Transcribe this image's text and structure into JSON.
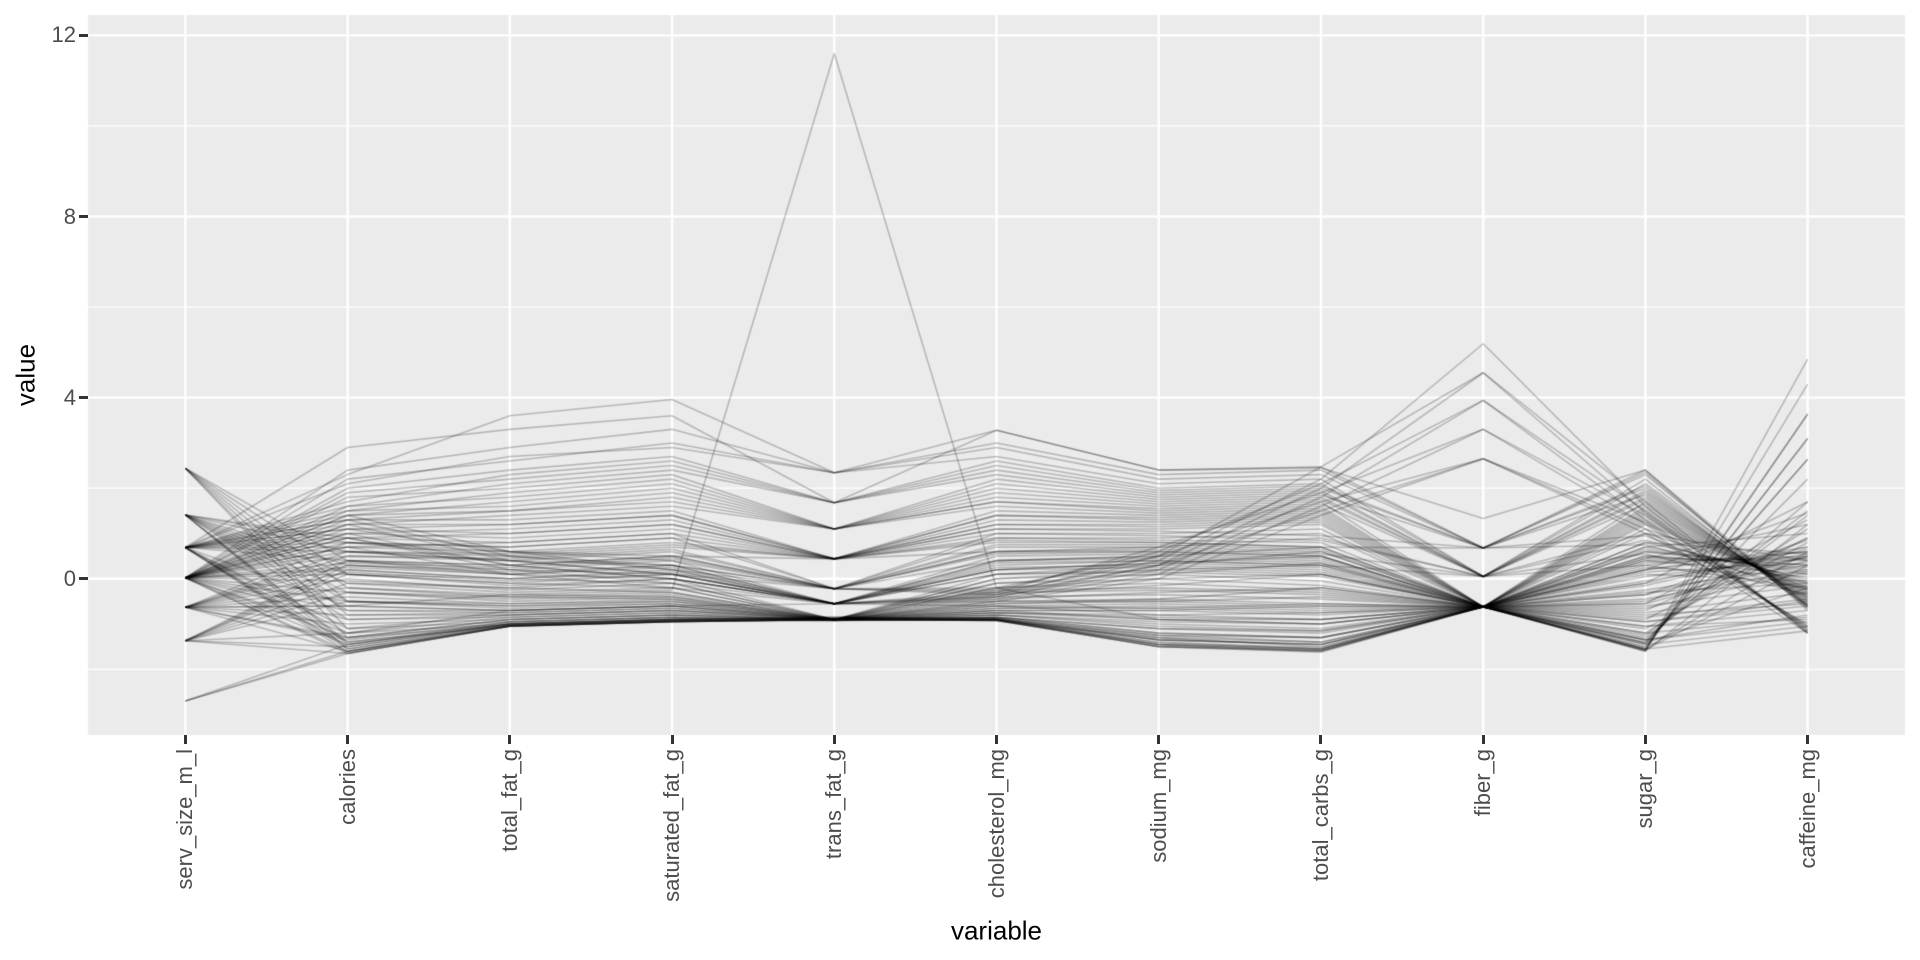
{
  "chart_data": {
    "type": "line",
    "variant": "parallel_coordinates",
    "title": "",
    "xlabel": "variable",
    "ylabel": "value",
    "categories": [
      "serv_size_m_l",
      "calories",
      "total_fat_g",
      "saturated_fat_g",
      "trans_fat_g",
      "cholesterol_mg",
      "sodium_mg",
      "total_carbs_g",
      "fiber_g",
      "sugar_g",
      "caffeine_mg"
    ],
    "y_ticks": [
      0,
      4,
      8,
      12
    ],
    "y_minor_ticks": [
      -2,
      2,
      6,
      10
    ],
    "ylim": [
      -3.45,
      12.45
    ],
    "grid": true,
    "legend": false,
    "style": {
      "panel_bg": "#EBEBEB",
      "grid_color": "#FFFFFF",
      "major_grid_width": 2.4,
      "minor_grid_width": 1.2,
      "line_color": "#000000",
      "line_alpha": 0.22,
      "line_width": 1.6,
      "tick_color": "#333333",
      "tick_label_color": "#4D4D4D",
      "axis_title_color": "#000000"
    },
    "lines": [
      [
        0.02,
        2.4,
        2.9,
        3.3,
        2.34,
        3.28,
        2.4,
        2.47,
        0.68,
        2.4,
        -0.6
      ],
      [
        0.02,
        2.2,
        2.6,
        3.0,
        2.34,
        2.9,
        2.2,
        2.3,
        0.68,
        2.3,
        -0.6
      ],
      [
        0.69,
        2.3,
        3.6,
        3.96,
        2.34,
        3.0,
        2.3,
        2.4,
        0.68,
        2.35,
        -0.65
      ],
      [
        0.69,
        2.9,
        3.3,
        3.6,
        1.68,
        3.28,
        2.4,
        2.45,
        1.33,
        2.4,
        -0.7
      ],
      [
        0.02,
        2.0,
        2.4,
        2.7,
        1.68,
        2.6,
        2.0,
        2.1,
        0.05,
        2.1,
        -0.55
      ],
      [
        0.02,
        1.9,
        2.2,
        2.5,
        1.68,
        2.4,
        1.9,
        2.0,
        0.68,
        2.0,
        -0.6
      ],
      [
        0.69,
        2.1,
        2.7,
        2.9,
        2.34,
        2.7,
        2.1,
        2.2,
        0.05,
        2.2,
        -0.65
      ],
      [
        0.02,
        1.8,
        2.0,
        2.3,
        1.1,
        2.2,
        1.8,
        1.9,
        0.05,
        1.9,
        -0.5
      ],
      [
        0.69,
        1.7,
        2.3,
        2.6,
        1.68,
        2.5,
        1.95,
        2.05,
        0.68,
        2.05,
        -0.6
      ],
      [
        0.02,
        1.6,
        1.8,
        2.1,
        1.1,
        2.0,
        1.7,
        1.8,
        0.05,
        1.8,
        -0.45
      ],
      [
        0.02,
        1.5,
        1.6,
        1.9,
        1.1,
        1.8,
        1.6,
        1.7,
        -0.62,
        1.7,
        -0.4
      ],
      [
        0.69,
        1.6,
        2.1,
        2.4,
        1.68,
        2.3,
        1.85,
        1.95,
        0.05,
        1.95,
        -0.55
      ],
      [
        0.02,
        1.4,
        1.5,
        1.7,
        1.1,
        1.7,
        1.5,
        1.6,
        -0.62,
        1.6,
        -0.35
      ],
      [
        0.69,
        1.5,
        1.9,
        2.2,
        1.1,
        2.1,
        1.75,
        1.85,
        0.68,
        1.85,
        -0.5
      ],
      [
        0.02,
        1.3,
        1.3,
        1.5,
        0.44,
        1.5,
        1.4,
        1.5,
        -0.62,
        1.5,
        -0.3
      ],
      [
        0.69,
        1.4,
        1.7,
        2.0,
        1.1,
        1.9,
        1.65,
        1.75,
        0.05,
        1.75,
        -0.45
      ],
      [
        0.02,
        1.2,
        1.2,
        1.4,
        0.44,
        1.4,
        1.3,
        1.4,
        -0.62,
        1.4,
        -0.25
      ],
      [
        0.69,
        1.3,
        1.5,
        1.8,
        1.1,
        1.7,
        1.55,
        1.65,
        0.05,
        1.65,
        -0.4
      ],
      [
        0.02,
        1.1,
        1.0,
        1.2,
        0.44,
        1.2,
        1.2,
        1.3,
        -0.62,
        1.3,
        -0.2
      ],
      [
        0.69,
        1.2,
        1.4,
        1.6,
        1.1,
        1.6,
        1.45,
        1.55,
        -0.62,
        1.55,
        -0.35
      ],
      [
        0.02,
        1.0,
        0.9,
        1.1,
        0.44,
        1.1,
        1.1,
        1.2,
        -0.62,
        1.2,
        -0.15
      ],
      [
        0.69,
        1.1,
        1.2,
        1.4,
        0.44,
        1.4,
        1.35,
        1.45,
        -0.62,
        1.45,
        -0.3
      ],
      [
        0.02,
        0.9,
        0.8,
        1.0,
        -0.22,
        1.0,
        1.0,
        1.1,
        -0.62,
        1.1,
        -0.1
      ],
      [
        0.69,
        1.0,
        1.1,
        1.3,
        0.44,
        1.3,
        1.25,
        1.35,
        -0.62,
        1.35,
        -0.25
      ],
      [
        0.02,
        0.8,
        0.7,
        0.9,
        -0.22,
        0.9,
        0.9,
        1.0,
        -0.62,
        1.0,
        -0.05
      ],
      [
        0.69,
        0.9,
        1.0,
        1.2,
        0.44,
        1.2,
        1.15,
        1.25,
        -0.62,
        1.25,
        -0.2
      ],
      [
        -0.63,
        0.6,
        0.5,
        0.7,
        0.44,
        0.8,
        0.8,
        0.7,
        -0.62,
        0.7,
        0.1
      ],
      [
        -0.63,
        0.5,
        0.4,
        0.6,
        -0.22,
        0.7,
        0.7,
        0.6,
        -0.62,
        0.6,
        0.2
      ],
      [
        0.02,
        0.7,
        0.6,
        0.8,
        0.44,
        0.9,
        0.85,
        0.8,
        -0.62,
        0.8,
        0.0
      ],
      [
        -1.37,
        0.4,
        0.3,
        0.5,
        -0.22,
        0.6,
        0.6,
        0.5,
        -0.62,
        0.5,
        0.3
      ],
      [
        -0.63,
        0.4,
        0.2,
        0.4,
        -0.55,
        0.5,
        0.55,
        0.45,
        -0.62,
        0.45,
        0.4
      ],
      [
        0.02,
        0.5,
        0.45,
        0.65,
        -0.22,
        0.75,
        0.75,
        0.65,
        -0.62,
        0.65,
        0.15
      ],
      [
        -1.37,
        0.3,
        0.15,
        0.3,
        -0.55,
        0.4,
        0.45,
        0.35,
        -0.62,
        0.35,
        0.5
      ],
      [
        -0.63,
        0.3,
        0.1,
        0.25,
        -0.55,
        0.35,
        0.4,
        0.3,
        -0.62,
        0.3,
        0.6
      ],
      [
        0.02,
        0.35,
        0.25,
        0.45,
        -0.22,
        0.55,
        0.6,
        0.5,
        -0.62,
        0.5,
        0.25
      ],
      [
        -1.37,
        0.2,
        0.0,
        0.15,
        -0.55,
        0.25,
        0.3,
        0.2,
        -0.62,
        0.2,
        0.7
      ],
      [
        -0.63,
        0.15,
        -0.05,
        0.1,
        -0.55,
        0.2,
        0.25,
        0.15,
        -0.62,
        0.15,
        0.35
      ],
      [
        0.02,
        0.25,
        0.1,
        0.3,
        -0.55,
        0.4,
        0.5,
        0.4,
        -0.62,
        0.4,
        0.1
      ],
      [
        -1.37,
        0.1,
        -0.15,
        0.0,
        -0.9,
        0.1,
        0.15,
        0.05,
        -0.62,
        0.05,
        0.45
      ],
      [
        -0.63,
        0.0,
        -0.25,
        -0.1,
        -0.9,
        0.0,
        0.1,
        -0.05,
        -0.62,
        -0.05,
        0.55
      ],
      [
        0.02,
        0.1,
        -0.1,
        0.1,
        -0.55,
        0.2,
        0.35,
        0.25,
        -0.62,
        0.25,
        0.05
      ],
      [
        -1.37,
        -0.1,
        -0.3,
        -0.2,
        -0.9,
        -0.1,
        0.0,
        -0.15,
        -0.62,
        -0.15,
        0.65
      ],
      [
        -0.63,
        -0.2,
        -0.4,
        -0.3,
        -0.9,
        -0.2,
        -0.1,
        -0.25,
        -0.62,
        -0.25,
        0.3
      ],
      [
        0.02,
        -0.05,
        -0.2,
        0.0,
        -0.55,
        0.1,
        0.2,
        0.1,
        -0.62,
        0.1,
        -0.05
      ],
      [
        -1.37,
        -0.3,
        -0.5,
        -0.4,
        -0.9,
        -0.3,
        -0.25,
        -0.35,
        -0.62,
        -0.35,
        0.5
      ],
      [
        -0.63,
        -0.4,
        -0.55,
        -0.45,
        -0.9,
        -0.4,
        -0.35,
        -0.45,
        -0.62,
        -0.45,
        0.2
      ],
      [
        0.02,
        -0.3,
        -0.45,
        -0.35,
        -0.9,
        -0.25,
        -0.2,
        -0.3,
        -0.62,
        -0.3,
        -0.1
      ],
      [
        -1.37,
        -0.5,
        -0.6,
        -0.5,
        -0.9,
        -0.5,
        -0.45,
        -0.55,
        -0.62,
        -0.55,
        0.4
      ],
      [
        -0.63,
        -0.6,
        -0.7,
        -0.6,
        -0.9,
        -0.6,
        -0.55,
        -0.65,
        -0.62,
        -0.65,
        0.15
      ],
      [
        0.02,
        -0.5,
        -0.65,
        -0.55,
        -0.9,
        -0.55,
        -0.5,
        -0.6,
        -0.62,
        -0.6,
        -0.15
      ],
      [
        0.69,
        -1.62,
        -1.05,
        -0.95,
        -0.9,
        -0.92,
        -1.5,
        -1.62,
        -0.62,
        -1.6,
        4.85
      ],
      [
        0.02,
        -1.65,
        -1.05,
        -0.95,
        -0.9,
        -0.92,
        -1.45,
        -1.6,
        -0.62,
        -1.58,
        4.3
      ],
      [
        1.41,
        -1.55,
        -1.03,
        -0.93,
        -0.88,
        -0.9,
        -1.4,
        -1.55,
        -0.62,
        -1.55,
        3.64
      ],
      [
        0.02,
        -1.6,
        -1.04,
        -0.94,
        -0.9,
        -0.91,
        -1.48,
        -1.58,
        -0.62,
        -1.58,
        3.64
      ],
      [
        -0.63,
        -1.6,
        -1.05,
        -0.95,
        -0.9,
        -0.92,
        -1.3,
        -1.5,
        -0.62,
        -1.5,
        3.1
      ],
      [
        0.69,
        -1.55,
        -1.02,
        -0.92,
        -0.88,
        -0.9,
        -1.42,
        -1.52,
        -0.62,
        -1.52,
        3.1
      ],
      [
        0.69,
        -1.5,
        -1.0,
        -0.9,
        -0.85,
        -0.9,
        -1.35,
        -1.45,
        -0.62,
        -1.45,
        2.64
      ],
      [
        1.41,
        -1.45,
        -1.0,
        -0.9,
        -0.85,
        -0.88,
        -1.35,
        -1.45,
        -0.62,
        -1.42,
        2.64
      ],
      [
        0.02,
        -1.45,
        -1.0,
        -0.9,
        -0.85,
        -0.88,
        -1.25,
        -1.4,
        -0.62,
        -1.4,
        2.2
      ],
      [
        1.41,
        -1.4,
        -0.98,
        -0.88,
        -0.9,
        -0.85,
        -1.2,
        -1.3,
        -0.62,
        -1.35,
        1.7
      ],
      [
        -0.63,
        -1.35,
        -0.95,
        -0.85,
        -0.9,
        -0.85,
        -1.1,
        -1.2,
        -0.62,
        -1.3,
        1.4
      ],
      [
        0.02,
        -1.3,
        -0.9,
        -0.8,
        -0.9,
        -0.8,
        -1.0,
        -1.1,
        -0.62,
        -1.2,
        1.1
      ],
      [
        0.69,
        -1.2,
        -0.85,
        -0.75,
        -0.9,
        -0.75,
        -0.9,
        -1.0,
        -0.62,
        -1.1,
        0.8
      ],
      [
        2.44,
        -1.3,
        -0.9,
        -0.8,
        -0.9,
        -0.8,
        -1.05,
        -1.15,
        -0.62,
        -1.25,
        1.5
      ],
      [
        2.44,
        -1.1,
        -0.8,
        -0.7,
        -0.9,
        -0.7,
        -0.9,
        -0.9,
        -0.62,
        -0.9,
        0.9
      ],
      [
        -2.7,
        -1.65,
        -1.05,
        -0.95,
        -0.9,
        -0.92,
        -1.5,
        -1.6,
        -0.62,
        -1.6,
        1.2
      ],
      [
        -2.7,
        -1.6,
        -1.03,
        -0.93,
        -0.88,
        -0.9,
        -1.45,
        -1.55,
        -0.62,
        -1.55,
        0.6
      ],
      [
        -1.37,
        -1.65,
        -1.05,
        -0.95,
        -0.9,
        -0.92,
        -1.5,
        -1.58,
        -0.62,
        -1.57,
        0.3
      ],
      [
        -1.37,
        -1.5,
        -1.0,
        -0.9,
        -0.9,
        -0.88,
        -1.3,
        -1.4,
        -0.62,
        -1.42,
        -0.2
      ],
      [
        -1.37,
        -1.2,
        -0.7,
        -0.6,
        -0.55,
        -0.6,
        -0.8,
        -0.9,
        -0.62,
        -0.95,
        -0.5
      ],
      [
        -2.7,
        -1.45,
        -0.95,
        -0.85,
        -0.9,
        -0.85,
        -1.2,
        -1.3,
        -0.62,
        -1.35,
        -0.8
      ],
      [
        -0.63,
        -0.6,
        -0.35,
        -0.25,
        11.6,
        -0.2,
        -0.9,
        -1.0,
        -0.62,
        -1.05,
        -0.9
      ],
      [
        0.02,
        1.4,
        0.6,
        0.2,
        -0.55,
        -0.3,
        0.4,
        2.2,
        5.19,
        1.6,
        -1.2
      ],
      [
        0.02,
        1.2,
        0.4,
        0.1,
        -0.55,
        -0.35,
        0.3,
        2.0,
        4.55,
        1.45,
        -1.15
      ],
      [
        0.69,
        1.3,
        0.5,
        0.3,
        -0.22,
        -0.2,
        0.5,
        2.47,
        4.55,
        1.7,
        -1.2
      ],
      [
        0.02,
        1.0,
        0.3,
        0.0,
        -0.55,
        -0.4,
        0.2,
        1.8,
        3.94,
        1.3,
        -1.1
      ],
      [
        0.69,
        1.1,
        0.6,
        0.4,
        -0.22,
        -0.25,
        0.6,
        2.1,
        3.94,
        1.5,
        -1.15
      ],
      [
        0.02,
        0.9,
        0.2,
        -0.1,
        -0.55,
        -0.45,
        0.1,
        1.6,
        3.3,
        1.2,
        -1.05
      ],
      [
        0.69,
        0.8,
        0.5,
        0.2,
        -0.22,
        -0.3,
        0.7,
        1.9,
        3.3,
        1.4,
        -1.1
      ],
      [
        0.02,
        0.7,
        0.1,
        -0.2,
        -0.55,
        -0.5,
        0.0,
        1.4,
        2.65,
        1.0,
        -1.0
      ],
      [
        0.69,
        0.6,
        0.4,
        0.1,
        -0.22,
        -0.35,
        0.5,
        1.7,
        2.65,
        1.25,
        -1.05
      ],
      [
        1.41,
        0.9,
        0.3,
        0.0,
        -0.55,
        -0.4,
        0.3,
        1.5,
        2.65,
        1.1,
        -1.2
      ],
      [
        1.41,
        0.8,
        0.6,
        0.5,
        0.44,
        0.6,
        0.7,
        0.9,
        0.05,
        1.0,
        0.4
      ],
      [
        1.41,
        0.6,
        0.4,
        0.3,
        -0.22,
        0.4,
        0.5,
        0.7,
        -0.62,
        0.8,
        0.55
      ],
      [
        2.44,
        0.4,
        0.1,
        0.0,
        -0.55,
        0.1,
        0.3,
        0.6,
        -0.62,
        0.7,
        1.0
      ],
      [
        1.41,
        0.3,
        0.2,
        0.1,
        -0.55,
        0.2,
        0.35,
        0.5,
        -0.62,
        0.6,
        0.3
      ],
      [
        2.44,
        0.1,
        -0.1,
        -0.2,
        -0.9,
        -0.1,
        0.1,
        0.35,
        -0.62,
        0.45,
        1.2
      ],
      [
        1.41,
        0.1,
        0.0,
        -0.1,
        -0.9,
        0.0,
        0.2,
        0.3,
        -0.62,
        0.4,
        0.45
      ],
      [
        2.44,
        -0.2,
        -0.35,
        -0.4,
        -0.9,
        -0.35,
        -0.15,
        0.1,
        -0.62,
        0.2,
        1.45
      ],
      [
        1.41,
        -0.1,
        -0.2,
        -0.3,
        -0.9,
        -0.2,
        0.0,
        0.1,
        -0.62,
        0.2,
        0.6
      ],
      [
        2.44,
        -0.5,
        -0.6,
        -0.55,
        -0.9,
        -0.55,
        -0.45,
        -0.2,
        -0.62,
        -0.1,
        1.7
      ],
      [
        1.41,
        -0.3,
        -0.4,
        -0.45,
        -0.9,
        -0.45,
        -0.3,
        -0.2,
        -0.62,
        -0.1,
        0.7
      ],
      [
        1.41,
        -0.5,
        -0.55,
        -0.5,
        -0.9,
        -0.5,
        -0.5,
        -0.4,
        -0.62,
        -0.35,
        0.85
      ],
      [
        2.44,
        -0.8,
        -0.75,
        -0.65,
        -0.9,
        -0.7,
        -0.7,
        -0.6,
        -0.62,
        -0.55,
        1.3
      ],
      [
        1.41,
        -0.7,
        -0.7,
        -0.6,
        -0.9,
        -0.65,
        -0.65,
        -0.55,
        -0.62,
        -0.5,
        0.5
      ],
      [
        1.41,
        -0.9,
        -0.8,
        -0.7,
        -0.9,
        -0.75,
        -0.8,
        -0.75,
        -0.62,
        -0.7,
        0.9
      ],
      [
        0.02,
        -0.7,
        -0.75,
        -0.65,
        -0.9,
        -0.65,
        -0.6,
        -0.7,
        -0.62,
        -0.75,
        -0.3
      ],
      [
        -0.63,
        -0.8,
        -0.8,
        -0.7,
        -0.9,
        -0.7,
        -0.7,
        -0.8,
        -0.62,
        -0.85,
        -0.45
      ],
      [
        0.69,
        -0.6,
        -0.7,
        -0.6,
        -0.9,
        -0.6,
        -0.65,
        -0.75,
        -0.62,
        -0.8,
        -0.55
      ],
      [
        0.02,
        -0.9,
        -0.85,
        -0.75,
        -0.92,
        -0.75,
        -0.85,
        -0.9,
        -0.62,
        -0.95,
        -0.6
      ],
      [
        -0.63,
        -1.0,
        -0.9,
        -0.8,
        -0.92,
        -0.8,
        -0.95,
        -1.0,
        -0.62,
        -1.05,
        -0.7
      ],
      [
        0.69,
        -1.1,
        -0.95,
        -0.85,
        -0.92,
        -0.85,
        -1.1,
        -1.15,
        -0.62,
        -1.2,
        -0.85
      ],
      [
        0.02,
        -1.2,
        -1.0,
        -0.9,
        -0.92,
        -0.88,
        -1.25,
        -1.3,
        -0.62,
        -1.35,
        -0.95
      ],
      [
        -0.63,
        -1.3,
        -1.02,
        -0.92,
        -0.92,
        -0.9,
        -1.35,
        -1.45,
        -0.62,
        -1.45,
        -1.05
      ],
      [
        0.69,
        -1.4,
        -1.04,
        -0.94,
        -0.92,
        -0.91,
        -1.45,
        -1.55,
        -0.62,
        -1.55,
        -1.15
      ],
      [
        0.02,
        0.2,
        0.0,
        0.2,
        -0.55,
        0.3,
        0.4,
        0.3,
        0.05,
        0.3,
        -0.2
      ],
      [
        0.69,
        0.4,
        0.3,
        0.5,
        -0.22,
        0.6,
        0.65,
        0.55,
        0.05,
        0.55,
        -0.35
      ],
      [
        -0.63,
        0.8,
        0.7,
        0.9,
        0.44,
        1.0,
        0.95,
        0.85,
        0.05,
        0.85,
        -0.1
      ],
      [
        0.02,
        0.6,
        0.55,
        0.75,
        0.44,
        0.85,
        0.8,
        0.7,
        0.68,
        0.75,
        -0.25
      ],
      [
        0.69,
        0.7,
        0.8,
        1.0,
        0.44,
        1.1,
        1.05,
        0.95,
        0.68,
        0.95,
        -0.4
      ]
    ]
  }
}
